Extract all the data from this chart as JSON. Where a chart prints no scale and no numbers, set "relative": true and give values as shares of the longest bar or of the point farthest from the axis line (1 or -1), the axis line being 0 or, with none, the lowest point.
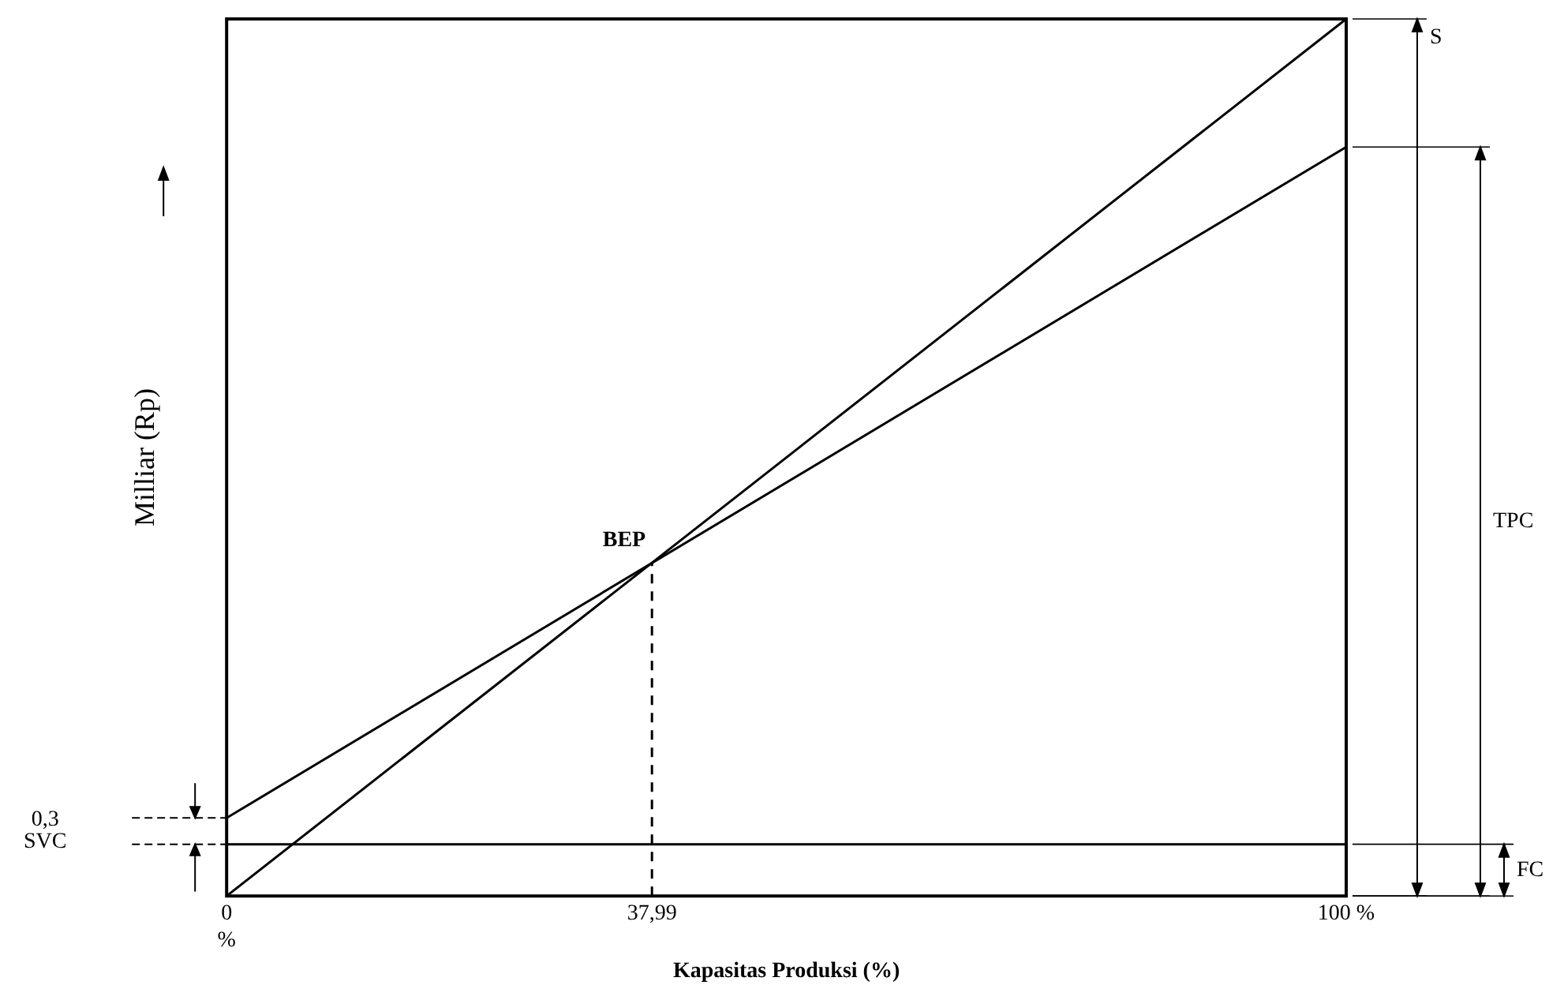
{
  "chart_data": {
    "type": "line",
    "relative": true,
    "xlabel": "Kapasitas Produksi (%)",
    "ylabel": "Milliar (Rp)",
    "xlim": [
      0,
      100
    ],
    "xticks": [
      {
        "value": 0,
        "label": "0\n%"
      },
      {
        "value": 37.99,
        "label": "37,99"
      },
      {
        "value": 100,
        "label": "100 %"
      }
    ],
    "series": [
      {
        "name": "S",
        "color": "#000000",
        "x": [
          0,
          100
        ],
        "values": [
          0,
          1
        ]
      },
      {
        "name": "TPC",
        "color": "#000000",
        "x": [
          0,
          100
        ],
        "values": [
          0.089,
          0.854
        ]
      },
      {
        "name": "FC",
        "color": "#000000",
        "x": [
          0,
          100
        ],
        "values": [
          0.059,
          0.059
        ]
      },
      {
        "color": "#000000",
        "x": [
          37.99,
          37.99
        ],
        "values": [
          0,
          0.38
        ],
        "line_style": "dashed"
      }
    ],
    "annotations": [
      {
        "text": "BEP",
        "x": 37.99,
        "y": 0.38
      },
      "0,3\nSVC"
    ],
    "grid": false,
    "legend": "right",
    "marker": "none"
  }
}
